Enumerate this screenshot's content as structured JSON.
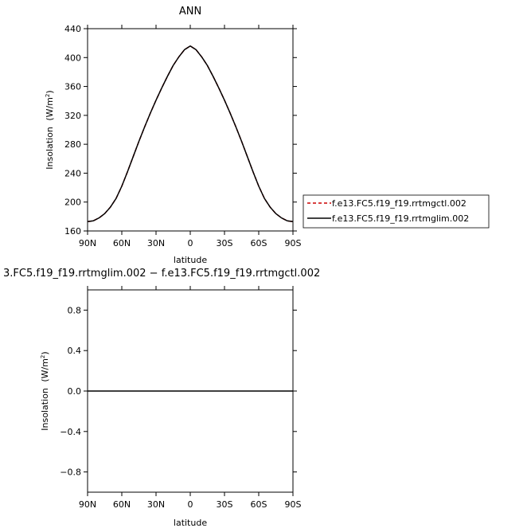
{
  "chart_data": [
    {
      "type": "line",
      "title": "ANN",
      "xlabel": "latitude",
      "ylabel": "Insolation",
      "ylabel_unit": "(W/m",
      "ylabel_sup": "2",
      "x_tick_labels": [
        "90N",
        "60N",
        "30N",
        "0",
        "30S",
        "60S",
        "90S"
      ],
      "x_tick_values": [
        90,
        60,
        30,
        0,
        -30,
        -60,
        -90
      ],
      "xlim": [
        90,
        -90
      ],
      "y_tick_labels": [
        "160",
        "200",
        "240",
        "280",
        "320",
        "360",
        "400",
        "440"
      ],
      "y_tick_values": [
        160,
        200,
        240,
        280,
        320,
        360,
        400,
        440
      ],
      "ylim": [
        160,
        440
      ],
      "legend_position": "right",
      "x": [
        90,
        85,
        80,
        75,
        70,
        65,
        60,
        55,
        50,
        45,
        40,
        35,
        30,
        25,
        20,
        15,
        10,
        5,
        0,
        -5,
        -10,
        -15,
        -20,
        -25,
        -30,
        -35,
        -40,
        -45,
        -50,
        -55,
        -60,
        -65,
        -70,
        -75,
        -80,
        -85,
        -90
      ],
      "series": [
        {
          "name": "f.e13.FC5.f19_f19.rrtmgctl.002",
          "color": "#cc0000",
          "dash": "dashed",
          "values": [
            173,
            174,
            178,
            184,
            193,
            205,
            222,
            242,
            263,
            284,
            304,
            323,
            341,
            358,
            374,
            389,
            401,
            411,
            416,
            411,
            401,
            389,
            374,
            358,
            341,
            323,
            304,
            284,
            263,
            242,
            222,
            205,
            193,
            184,
            178,
            174,
            173
          ]
        },
        {
          "name": "f.e13.FC5.f19_f19.rrtmglim.002",
          "color": "#000000",
          "dash": "solid",
          "values": [
            173,
            174,
            178,
            184,
            193,
            205,
            222,
            242,
            263,
            284,
            304,
            323,
            341,
            358,
            374,
            389,
            401,
            411,
            416,
            411,
            401,
            389,
            374,
            358,
            341,
            323,
            304,
            284,
            263,
            242,
            222,
            205,
            193,
            184,
            178,
            174,
            173
          ]
        }
      ]
    },
    {
      "type": "line",
      "title": "3.FC5.f19_f19.rrtmglim.002 − f.e13.FC5.f19_f19.rrtmgctl.002",
      "xlabel": "latitude",
      "ylabel": "Insolation",
      "ylabel_unit": "(W/m",
      "ylabel_sup": "2",
      "x_tick_labels": [
        "90N",
        "60N",
        "30N",
        "0",
        "30S",
        "60S",
        "90S"
      ],
      "x_tick_values": [
        90,
        60,
        30,
        0,
        -30,
        -60,
        -90
      ],
      "xlim": [
        90,
        -90
      ],
      "y_tick_labels": [
        "−0.8",
        "−0.4",
        "0.0",
        "0.4",
        "0.8"
      ],
      "y_tick_values": [
        -0.8,
        -0.4,
        0.0,
        0.4,
        0.8
      ],
      "ylim": [
        -1,
        1
      ],
      "x": [
        90,
        -90
      ],
      "series": [
        {
          "color": "#000000",
          "dash": "solid",
          "values": [
            0,
            0
          ]
        }
      ]
    }
  ]
}
